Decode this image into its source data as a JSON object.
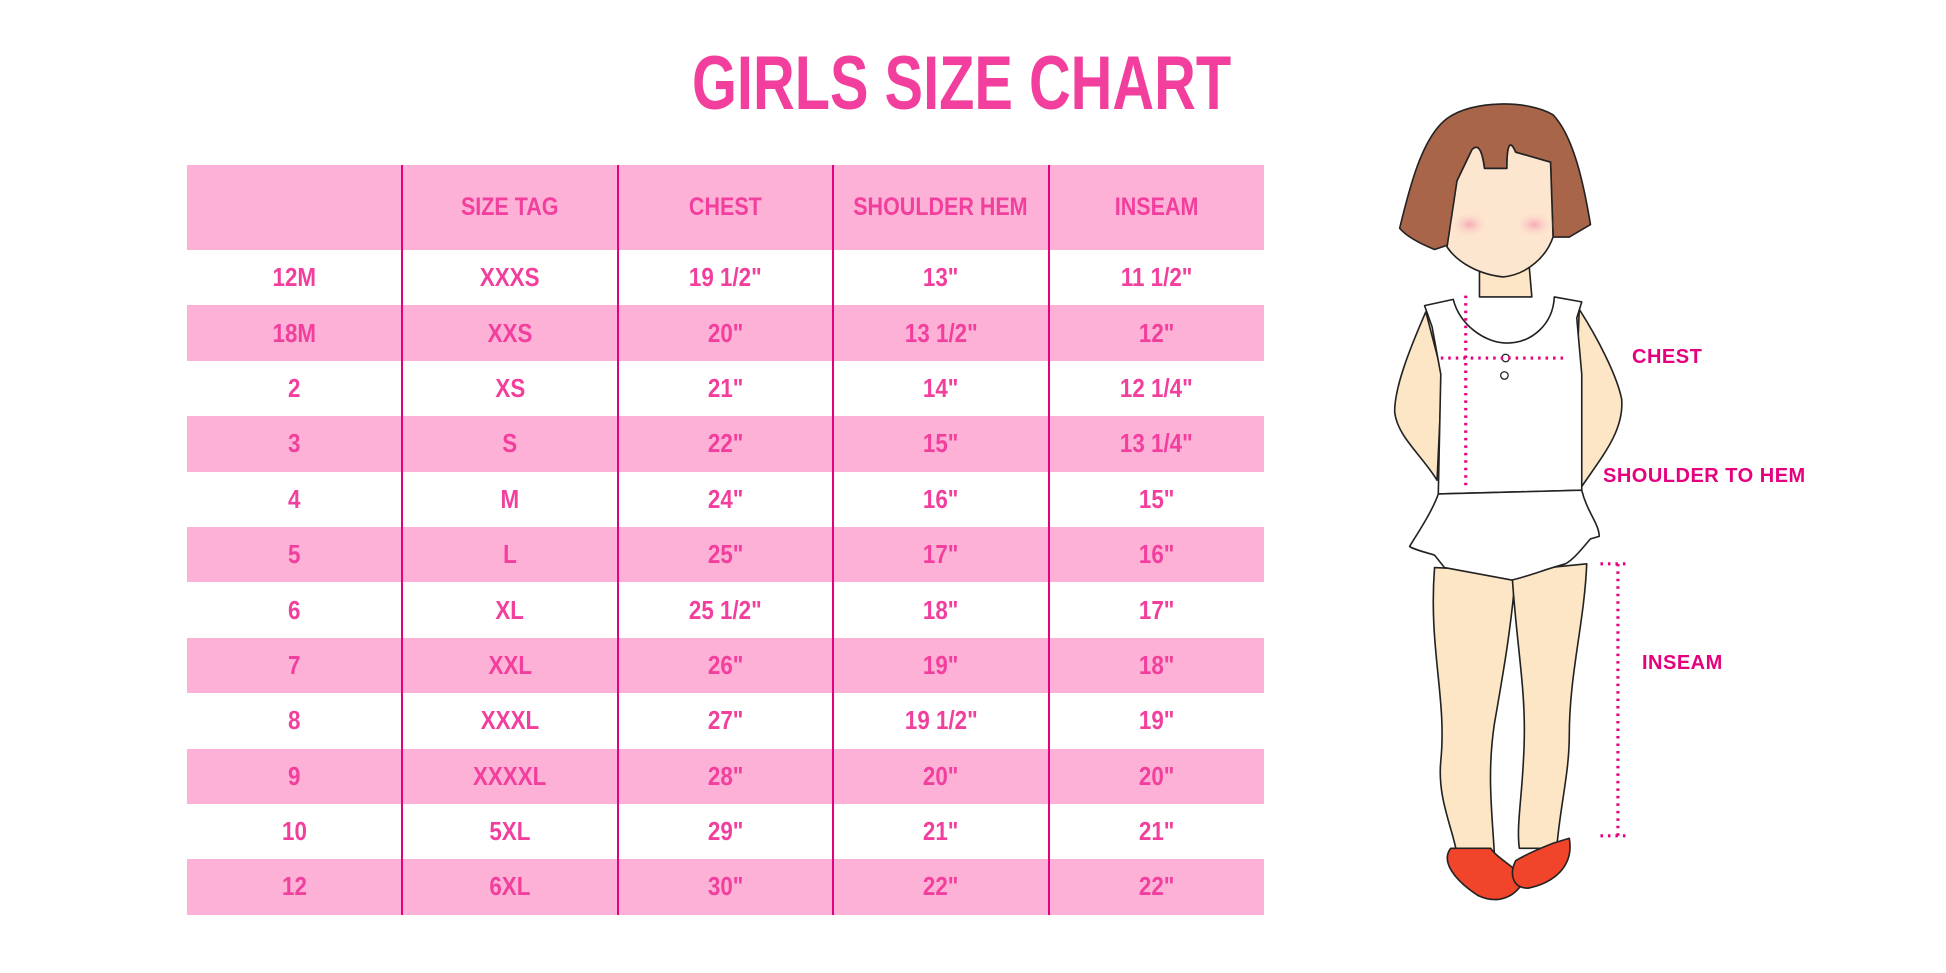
{
  "title": "GIRLS SIZE CHART",
  "colors": {
    "accent": "#f23f9d",
    "row_pink": "#fdb1d6",
    "divider": "#e5007e",
    "label": "#e5007e"
  },
  "table": {
    "headers": [
      "",
      "SIZE TAG",
      "CHEST",
      "SHOULDER HEM",
      "INSEAM"
    ],
    "rows": [
      [
        "12M",
        "XXXS",
        "19 1/2\"",
        "13\"",
        "11 1/2\""
      ],
      [
        "18M",
        "XXS",
        "20\"",
        "13 1/2\"",
        "12\""
      ],
      [
        "2",
        "XS",
        "21\"",
        "14\"",
        "12 1/4\""
      ],
      [
        "3",
        "S",
        "22\"",
        "15\"",
        "13 1/4\""
      ],
      [
        "4",
        "M",
        "24\"",
        "16\"",
        "15\""
      ],
      [
        "5",
        "L",
        "25\"",
        "17\"",
        "16\""
      ],
      [
        "6",
        "XL",
        "25 1/2\"",
        "18\"",
        "17\""
      ],
      [
        "7",
        "XXL",
        "26\"",
        "19\"",
        "18\""
      ],
      [
        "8",
        "XXXL",
        "27\"",
        "19 1/2\"",
        "19\""
      ],
      [
        "9",
        "XXXXL",
        "28\"",
        "20\"",
        "20\""
      ],
      [
        "10",
        "5XL",
        "29\"",
        "21\"",
        "21\""
      ],
      [
        "12",
        "6XL",
        "30\"",
        "22\"",
        "22\""
      ]
    ]
  },
  "figure": {
    "labels": {
      "chest": "CHEST",
      "shoulder_to_hem": "SHOULDER TO HEM",
      "inseam": "INSEAM"
    }
  }
}
